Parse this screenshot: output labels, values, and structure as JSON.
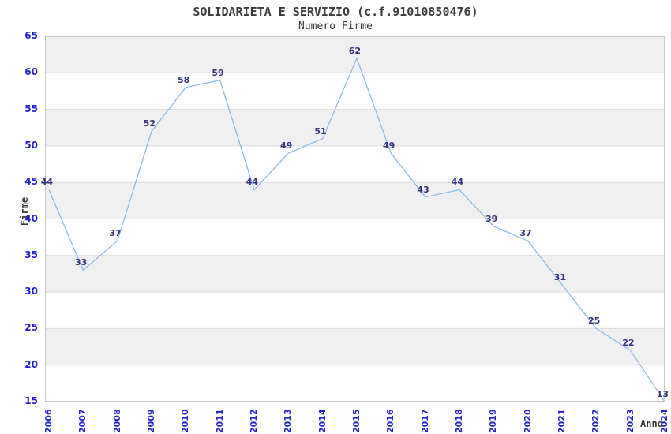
{
  "chart": {
    "title": "SOLIDARIETA E SERVIZIO (c.f.91010850476)",
    "subtitle": "Numero Firme",
    "y_axis_title": "Firme",
    "x_axis_title": "Anno"
  },
  "chart_data": {
    "type": "line",
    "title": "SOLIDARIETA E SERVIZIO (c.f.91010850476)",
    "subtitle": "Numero Firme",
    "xlabel": "Anno",
    "ylabel": "Firme",
    "categories": [
      "2006",
      "2007",
      "2008",
      "2009",
      "2010",
      "2011",
      "2012",
      "2013",
      "2014",
      "2015",
      "2016",
      "2017",
      "2018",
      "2019",
      "2020",
      "2021",
      "2022",
      "2023",
      "2024"
    ],
    "values": [
      44,
      33,
      37,
      52,
      58,
      59,
      44,
      49,
      51,
      62,
      49,
      43,
      44,
      39,
      37,
      31,
      25,
      22,
      13
    ],
    "ylim": [
      15,
      65
    ],
    "y_tick_step": 5,
    "grid": "horizontal-bands",
    "legend": "none",
    "data_labels": true,
    "colors": {
      "line": "#8cbaec",
      "tick_label": "#2323cc",
      "data_label": "#333380",
      "band_fill": "#f0f0f0",
      "band_alt": "#ffffff",
      "grid_line": "#dcdcdc",
      "plot_border": "#c8c8c8",
      "title_text": "#3c3c3c",
      "axis_title_text": "#333333"
    }
  }
}
